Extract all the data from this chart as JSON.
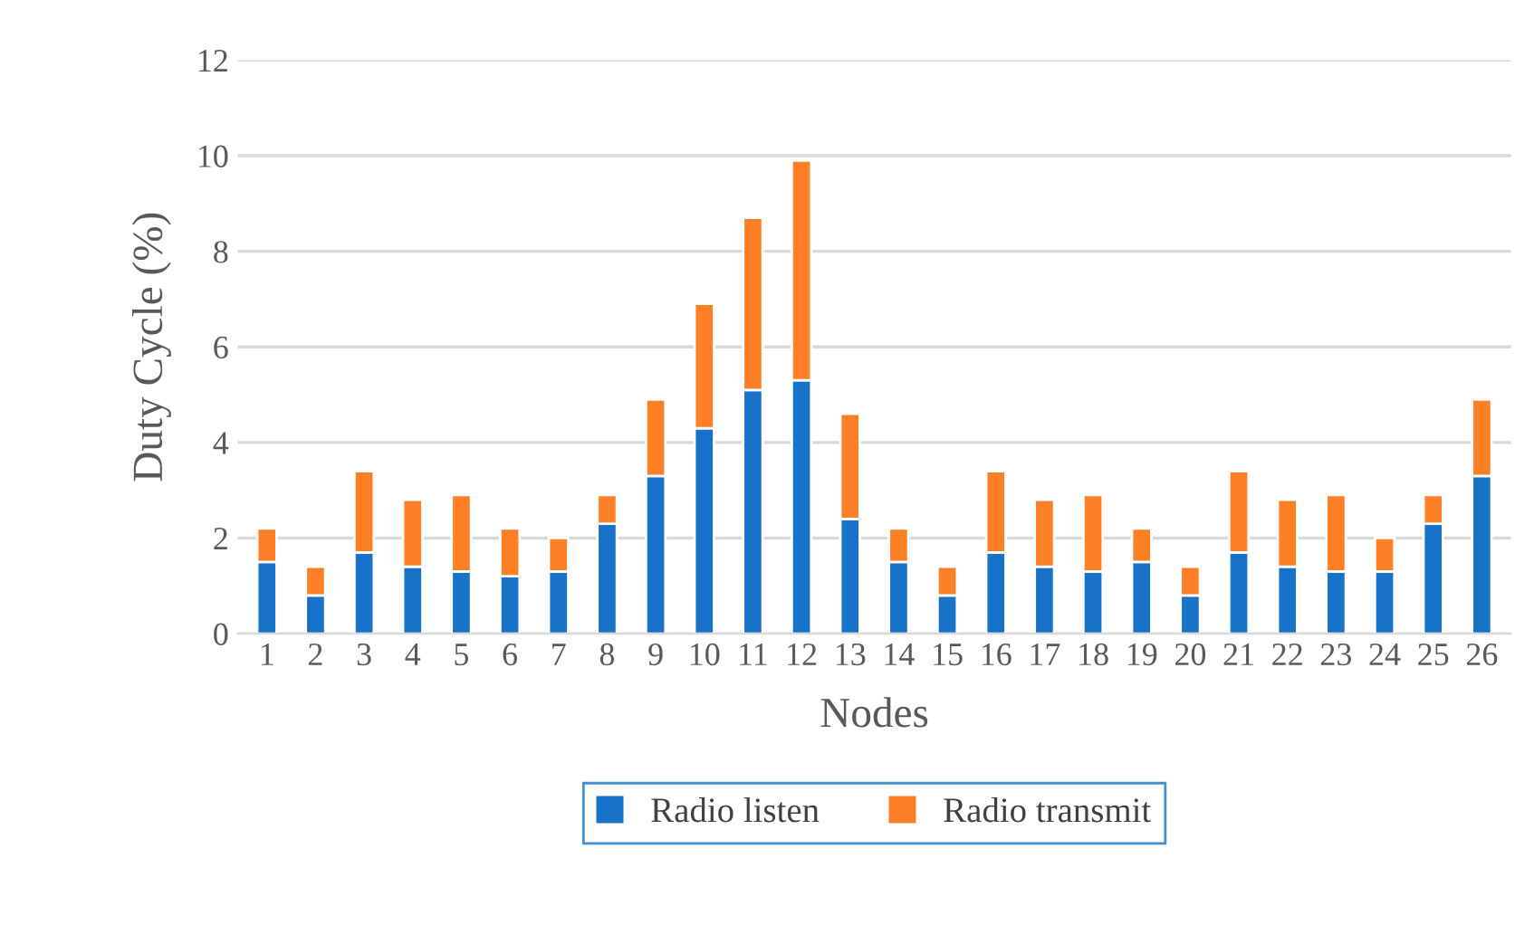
{
  "chart_data": {
    "type": "bar",
    "stacked": true,
    "xlabel": "Nodes",
    "ylabel": "Duty Cycle (%)",
    "categories": [
      "1",
      "2",
      "3",
      "4",
      "5",
      "6",
      "7",
      "8",
      "9",
      "10",
      "11",
      "12",
      "13",
      "14",
      "15",
      "16",
      "17",
      "18",
      "19",
      "20",
      "21",
      "22",
      "23",
      "24",
      "25",
      "26"
    ],
    "series": [
      {
        "name": "Radio listen",
        "color": "#1872c8",
        "values": [
          1.5,
          0.8,
          1.7,
          1.4,
          1.3,
          1.2,
          1.3,
          2.3,
          3.3,
          4.3,
          5.1,
          5.3,
          2.4,
          1.5,
          0.8,
          1.7,
          1.4,
          1.3,
          1.5,
          0.8,
          1.7,
          1.4,
          1.3,
          1.3,
          2.3,
          3.3
        ]
      },
      {
        "name": "Radio transmit",
        "color": "#ff7f27",
        "values": [
          0.7,
          0.6,
          1.7,
          1.4,
          1.6,
          1.0,
          0.7,
          0.6,
          1.6,
          2.6,
          3.6,
          4.6,
          2.2,
          0.7,
          0.6,
          1.7,
          1.4,
          1.6,
          0.7,
          0.6,
          1.7,
          1.4,
          1.6,
          0.7,
          0.6,
          1.6
        ]
      }
    ],
    "ylim": [
      0,
      12
    ],
    "yticks": [
      0,
      2,
      4,
      6,
      8,
      10,
      12
    ],
    "grid": "y",
    "legend": "bottom"
  }
}
